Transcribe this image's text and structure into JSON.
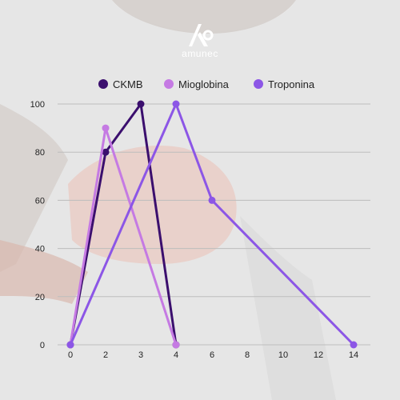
{
  "logo": {
    "text": "amunec"
  },
  "chart_data": {
    "type": "line",
    "title": "",
    "xlabel": "",
    "ylabel": "",
    "x_ticks": [
      0,
      2,
      3,
      4,
      6,
      8,
      10,
      12,
      14
    ],
    "y_ticks": [
      0,
      20,
      40,
      60,
      80,
      100
    ],
    "ylim": [
      0,
      100
    ],
    "grid": "horizontal",
    "legend_position": "top",
    "series": [
      {
        "name": "CKMB",
        "color": "#3b0f6e",
        "x": [
          0,
          2,
          3,
          4
        ],
        "y": [
          0,
          80,
          100,
          0
        ]
      },
      {
        "name": "Mioglobina",
        "color": "#c57ae3",
        "x": [
          0,
          2,
          4
        ],
        "y": [
          0,
          90,
          0
        ]
      },
      {
        "name": "Troponina",
        "color": "#8c56e6",
        "x": [
          0,
          4,
          6,
          14
        ],
        "y": [
          0,
          100,
          60,
          0
        ]
      }
    ]
  }
}
